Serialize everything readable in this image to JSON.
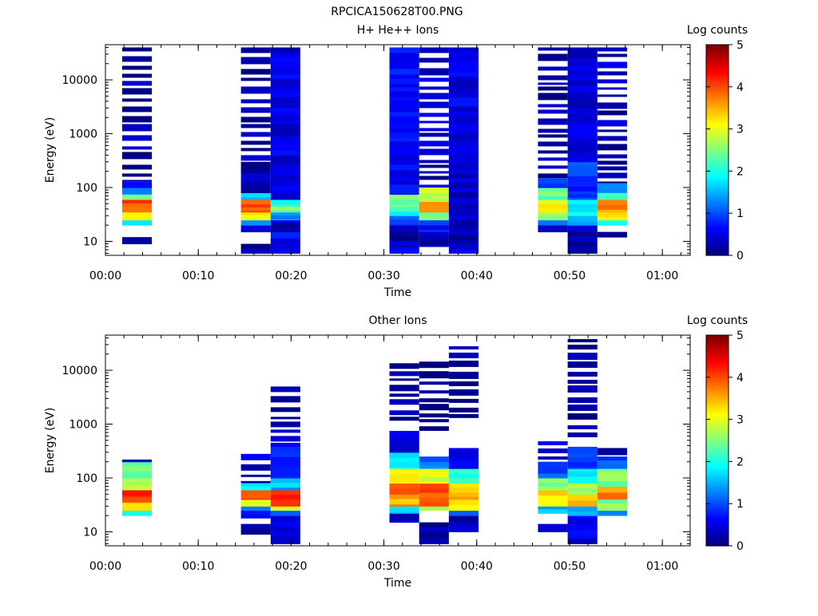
{
  "figure_title": "RPCICA150628T00.PNG",
  "chart_data": [
    {
      "type": "heatmap",
      "title": "H+ He++ Ions",
      "xlabel": "Time",
      "ylabel": "Energy (eV)",
      "x_ticks": [
        "00:00",
        "00:10",
        "00:20",
        "00:30",
        "00:40",
        "00:50",
        "01:00"
      ],
      "x_tick_minutes": [
        0,
        10,
        20,
        30,
        40,
        50,
        60
      ],
      "xlim_minutes": [
        0,
        63
      ],
      "y_scale": "log",
      "ylim": [
        5.5,
        45000
      ],
      "y_ticks": [
        "10",
        "100",
        "1000",
        "10000"
      ],
      "y_tick_values": [
        10,
        100,
        1000,
        10000
      ],
      "colorbar": {
        "label": "Log counts",
        "ticks": [
          "0",
          "1",
          "2",
          "3",
          "4",
          "5"
        ],
        "range": [
          0,
          5
        ],
        "colormap": "jet"
      },
      "columns": [
        {
          "t_start": 1.8,
          "t_end": 5.0,
          "bins": [
            [
              9,
              12,
              0.3
            ],
            [
              20,
              25,
              1.9
            ],
            [
              25,
              35,
              3.2
            ],
            [
              35,
              45,
              3.7
            ],
            [
              45,
              60,
              4.1
            ],
            [
              60,
              75,
              2.4
            ],
            [
              75,
              100,
              1.4
            ],
            [
              100,
              130,
              0.6
            ],
            [
              130,
              40000,
              0.15,
              "sparse"
            ]
          ]
        },
        {
          "t_start": 14.6,
          "t_end": 17.8,
          "bins": [
            [
              6,
              9,
              0.15
            ],
            [
              15,
              20,
              0.4
            ],
            [
              20,
              25,
              1.4
            ],
            [
              25,
              35,
              3.1
            ],
            [
              35,
              60,
              4.0
            ],
            [
              60,
              80,
              1.6
            ],
            [
              80,
              300,
              0.25
            ],
            [
              300,
              40000,
              0.15,
              "sparse"
            ]
          ]
        },
        {
          "t_start": 17.8,
          "t_end": 21.0,
          "bins": [
            [
              6,
              15,
              0.6
            ],
            [
              15,
              25,
              0.3
            ],
            [
              25,
              35,
              1.3
            ],
            [
              35,
              45,
              2.5
            ],
            [
              45,
              60,
              2.0
            ],
            [
              60,
              400,
              0.5
            ],
            [
              400,
              40000,
              0.45
            ]
          ]
        },
        {
          "t_start": 30.6,
          "t_end": 33.8,
          "bins": [
            [
              6,
              8,
              0.5
            ],
            [
              8,
              20,
              0.25
            ],
            [
              20,
              30,
              1.0
            ],
            [
              30,
              45,
              2.0
            ],
            [
              45,
              75,
              2.5
            ],
            [
              75,
              400,
              0.55
            ],
            [
              400,
              40000,
              0.6
            ]
          ]
        },
        {
          "t_start": 33.8,
          "t_end": 37.0,
          "bins": [
            [
              8,
              15,
              0.3
            ],
            [
              15,
              25,
              0.7
            ],
            [
              25,
              35,
              2.4
            ],
            [
              35,
              55,
              3.7
            ],
            [
              55,
              75,
              3.0
            ],
            [
              75,
              100,
              2.7
            ],
            [
              100,
              40000,
              0.3,
              "sparse"
            ]
          ]
        },
        {
          "t_start": 37.0,
          "t_end": 40.2,
          "bins": [
            [
              6,
              9,
              0.4
            ],
            [
              9,
              25,
              0.2
            ],
            [
              25,
              400,
              0.35
            ],
            [
              400,
              40000,
              0.5
            ]
          ]
        },
        {
          "t_start": 46.6,
          "t_end": 49.8,
          "bins": [
            [
              15,
              20,
              0.4
            ],
            [
              20,
              25,
              1.0
            ],
            [
              25,
              35,
              2.6
            ],
            [
              35,
              60,
              3.1
            ],
            [
              60,
              100,
              2.3
            ],
            [
              100,
              150,
              0.8
            ],
            [
              150,
              40000,
              0.15,
              "sparse"
            ]
          ]
        },
        {
          "t_start": 49.8,
          "t_end": 53.0,
          "bins": [
            [
              6,
              15,
              0.1
            ],
            [
              15,
              20,
              0.5
            ],
            [
              20,
              30,
              1.3
            ],
            [
              30,
              60,
              1.8
            ],
            [
              60,
              300,
              0.9
            ],
            [
              300,
              40000,
              0.45
            ]
          ]
        },
        {
          "t_start": 53.0,
          "t_end": 56.2,
          "bins": [
            [
              12,
              15,
              0.3
            ],
            [
              20,
              25,
              1.8
            ],
            [
              25,
              35,
              3.2
            ],
            [
              35,
              60,
              3.7
            ],
            [
              60,
              80,
              2.1
            ],
            [
              80,
              120,
              1.3
            ],
            [
              120,
              40000,
              0.3,
              "sparse"
            ]
          ]
        }
      ]
    },
    {
      "type": "heatmap",
      "title": "Other Ions",
      "xlabel": "Time",
      "ylabel": "Energy (eV)",
      "x_ticks": [
        "00:00",
        "00:10",
        "00:20",
        "00:30",
        "00:40",
        "00:50",
        "01:00"
      ],
      "x_tick_minutes": [
        0,
        10,
        20,
        30,
        40,
        50,
        60
      ],
      "xlim_minutes": [
        0,
        63
      ],
      "y_scale": "log",
      "ylim": [
        5.5,
        45000
      ],
      "y_ticks": [
        "10",
        "100",
        "1000",
        "10000"
      ],
      "y_tick_values": [
        10,
        100,
        1000,
        10000
      ],
      "colorbar": {
        "label": "Log counts",
        "ticks": [
          "0",
          "1",
          "2",
          "3",
          "4",
          "5"
        ],
        "range": [
          0,
          5
        ],
        "colormap": "jet"
      },
      "columns": [
        {
          "t_start": 1.8,
          "t_end": 5.0,
          "bins": [
            [
              20,
              25,
              1.8
            ],
            [
              25,
              35,
              3.2
            ],
            [
              35,
              45,
              3.9
            ],
            [
              45,
              60,
              4.2
            ],
            [
              60,
              100,
              2.8
            ],
            [
              100,
              200,
              2.4
            ],
            [
              200,
              220,
              0.3
            ]
          ]
        },
        {
          "t_start": 14.6,
          "t_end": 17.8,
          "bins": [
            [
              9,
              14,
              0.15
            ],
            [
              18,
              25,
              0.6
            ],
            [
              25,
              30,
              1.3
            ],
            [
              30,
              40,
              3.0
            ],
            [
              40,
              60,
              4.0
            ],
            [
              60,
              80,
              1.8
            ],
            [
              80,
              280,
              0.3,
              "sparse"
            ]
          ]
        },
        {
          "t_start": 17.8,
          "t_end": 21.0,
          "bins": [
            [
              6,
              20,
              0.4
            ],
            [
              20,
              25,
              1.2
            ],
            [
              25,
              30,
              2.8
            ],
            [
              30,
              40,
              4.2
            ],
            [
              40,
              60,
              4.3
            ],
            [
              60,
              100,
              1.5
            ],
            [
              100,
              450,
              0.8
            ],
            [
              450,
              5000,
              0.2,
              "sparse"
            ]
          ]
        },
        {
          "t_start": 30.6,
          "t_end": 33.8,
          "bins": [
            [
              15,
              22,
              0.3
            ],
            [
              22,
              30,
              1.6
            ],
            [
              30,
              50,
              3.6
            ],
            [
              50,
              80,
              4.0
            ],
            [
              80,
              150,
              3.2
            ],
            [
              150,
              300,
              1.8
            ],
            [
              300,
              750,
              0.5
            ],
            [
              1000,
              13500,
              0.1,
              "sparse"
            ]
          ]
        },
        {
          "t_start": 33.8,
          "t_end": 37.0,
          "bins": [
            [
              6,
              15,
              0.15
            ],
            [
              25,
              30,
              2.8
            ],
            [
              30,
              80,
              3.9
            ],
            [
              80,
              150,
              3.0
            ],
            [
              150,
              250,
              1.2
            ],
            [
              750,
              14500,
              0.1,
              "sparse"
            ]
          ]
        },
        {
          "t_start": 37.0,
          "t_end": 40.2,
          "bins": [
            [
              10,
              20,
              0.3
            ],
            [
              20,
              25,
              1.3
            ],
            [
              25,
              40,
              3.1
            ],
            [
              40,
              80,
              3.4
            ],
            [
              80,
              150,
              2.0
            ],
            [
              150,
              360,
              0.6
            ],
            [
              1300,
              28000,
              0.1,
              "sparse"
            ]
          ]
        },
        {
          "t_start": 46.6,
          "t_end": 49.8,
          "bins": [
            [
              10,
              14,
              0.2
            ],
            [
              22,
              30,
              1.5
            ],
            [
              30,
              60,
              3.2
            ],
            [
              60,
              100,
              2.5
            ],
            [
              100,
              200,
              1.0
            ],
            [
              200,
              480,
              0.3,
              "sparse"
            ]
          ]
        },
        {
          "t_start": 49.8,
          "t_end": 53.0,
          "bins": [
            [
              6,
              20,
              0.5
            ],
            [
              20,
              30,
              1.6
            ],
            [
              30,
              50,
              3.4
            ],
            [
              50,
              80,
              2.8
            ],
            [
              80,
              150,
              1.8
            ],
            [
              150,
              380,
              0.9
            ],
            [
              450,
              38000,
              0.1,
              "sparse"
            ]
          ]
        },
        {
          "t_start": 53.0,
          "t_end": 56.2,
          "bins": [
            [
              20,
              25,
              1.2
            ],
            [
              25,
              40,
              2.5
            ],
            [
              40,
              70,
              3.7
            ],
            [
              70,
              150,
              2.5
            ],
            [
              150,
              250,
              1.0
            ],
            [
              250,
              360,
              0.4,
              "sparse"
            ]
          ]
        }
      ]
    }
  ]
}
